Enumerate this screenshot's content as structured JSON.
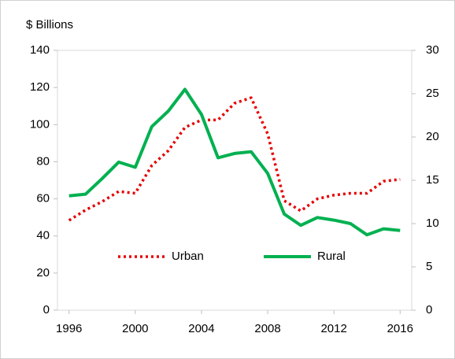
{
  "chart_data": {
    "type": "line",
    "y_label": "$ Billions",
    "x": [
      1996,
      1997,
      1998,
      1999,
      2000,
      2001,
      2002,
      2003,
      2004,
      2005,
      2006,
      2007,
      2008,
      2009,
      2010,
      2011,
      2012,
      2013,
      2014,
      2015,
      2016
    ],
    "series": [
      {
        "name": "Urban",
        "color": "#e60000",
        "dash": "dotted",
        "values": [
          48.4,
          54,
          58.5,
          64,
          63,
          78,
          86,
          98.5,
          102.5,
          102.5,
          111.5,
          114.5,
          95,
          59,
          53.5,
          60,
          62,
          63,
          63,
          69.5,
          70.5
        ]
      },
      {
        "name": "Rural",
        "color": "#00b050",
        "dash": "solid",
        "axis": "y2",
        "values": [
          13.2,
          13.4,
          15.2,
          17.1,
          16.5,
          21.2,
          23,
          25.5,
          22.6,
          17.6,
          18.1,
          18.3,
          15.8,
          11.1,
          9.8,
          10.7,
          10.4,
          10,
          8.7,
          9.4,
          9.2
        ]
      }
    ],
    "xlim": [
      1995.3,
      2016.7
    ],
    "xticks": [
      1996,
      2000,
      2004,
      2008,
      2012,
      2016
    ],
    "ylim": [
      0,
      140
    ],
    "yticks": [
      0,
      20,
      40,
      60,
      80,
      100,
      120,
      140
    ],
    "y2lim": [
      0,
      30
    ],
    "y2ticks": [
      0,
      5,
      10,
      15,
      20,
      25,
      30
    ]
  }
}
